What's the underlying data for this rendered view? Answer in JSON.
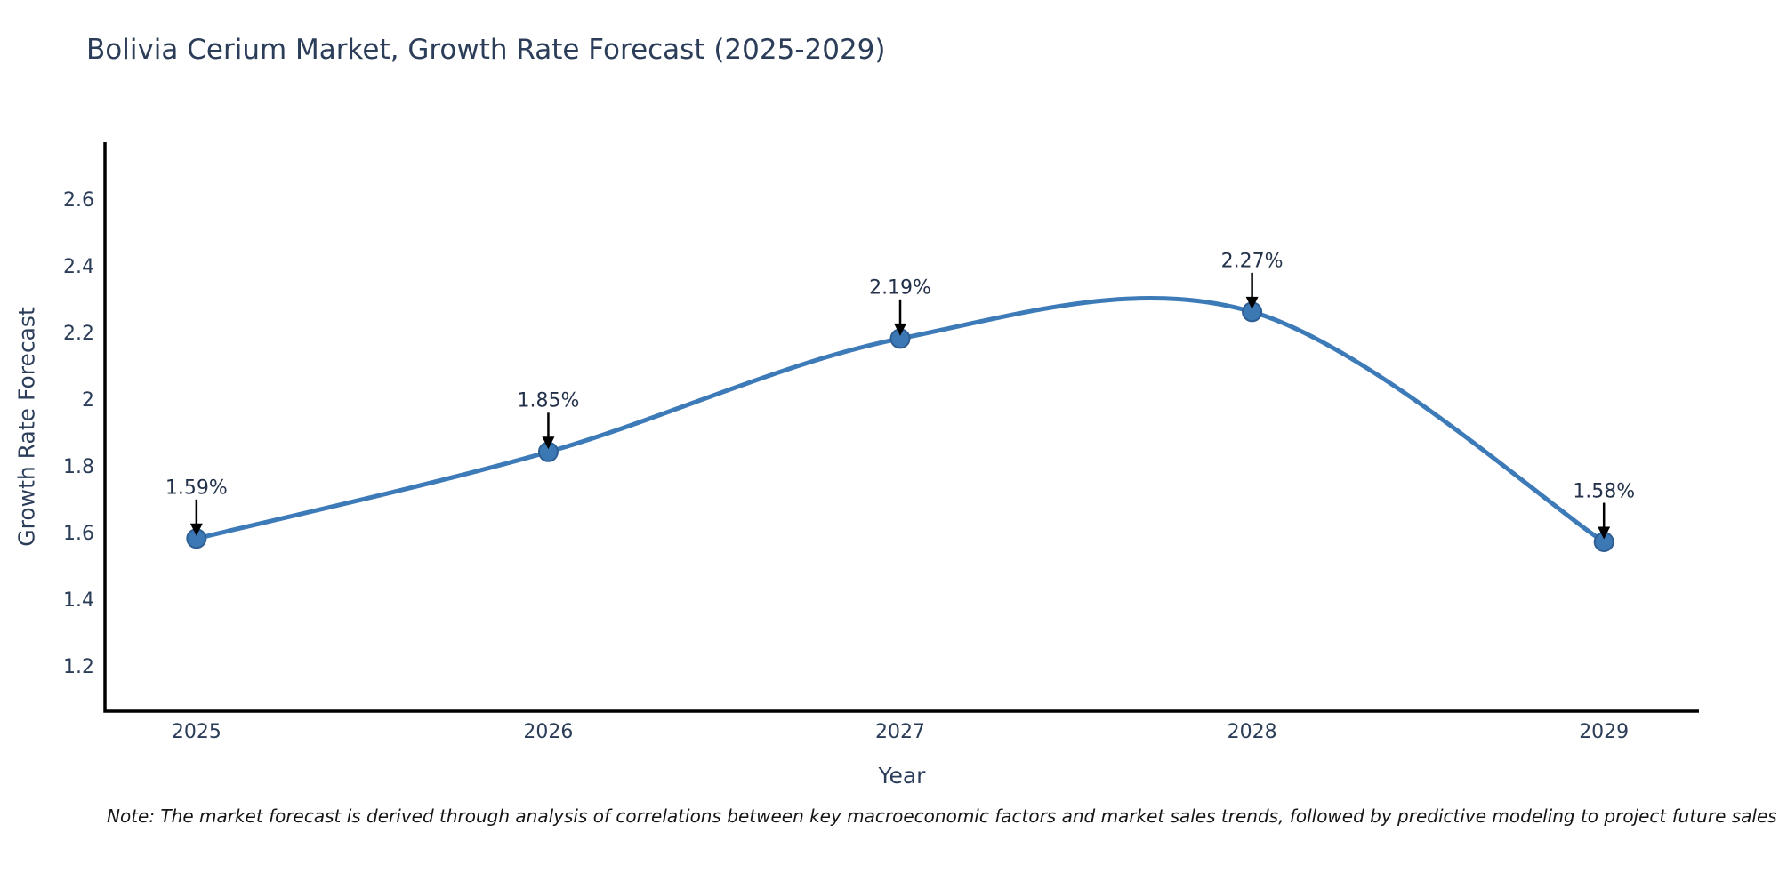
{
  "title": "Bolivia Cerium Market, Growth Rate Forecast (2025-2029)",
  "note": "Note: The market forecast is derived through analysis of correlations between key macroeconomic factors and market sales trends, followed by predictive modeling to project future sales",
  "chart_data": {
    "type": "line",
    "line_shape": "spline",
    "title": "Bolivia Cerium Market, Growth Rate Forecast (2025-2029)",
    "xlabel": "Year",
    "ylabel": "Growth Rate Forecast",
    "x": [
      2025,
      2026,
      2027,
      2028,
      2029
    ],
    "values": [
      1.59,
      1.85,
      2.19,
      2.27,
      1.58
    ],
    "point_labels": [
      "1.59%",
      "1.85%",
      "2.19%",
      "2.27%",
      "1.58%"
    ],
    "xtick_labels": [
      "2025",
      "2026",
      "2027",
      "2028",
      "2029"
    ],
    "yticks": [
      1.2,
      1.4,
      1.6,
      1.8,
      2,
      2.2,
      2.4,
      2.6
    ],
    "ytick_labels": [
      "1.2",
      "1.4",
      "1.6",
      "1.8",
      "2",
      "2.2",
      "2.4",
      "2.6"
    ],
    "ylim": [
      1.07,
      2.78
    ],
    "grid": false,
    "legend": "none",
    "colors": {
      "line": "#3d7ab8",
      "marker": "#3c78b4",
      "marker_edge": "#2e5f94",
      "axis": "#000000",
      "arrow": "#000000",
      "text": "#2b3d59"
    }
  }
}
